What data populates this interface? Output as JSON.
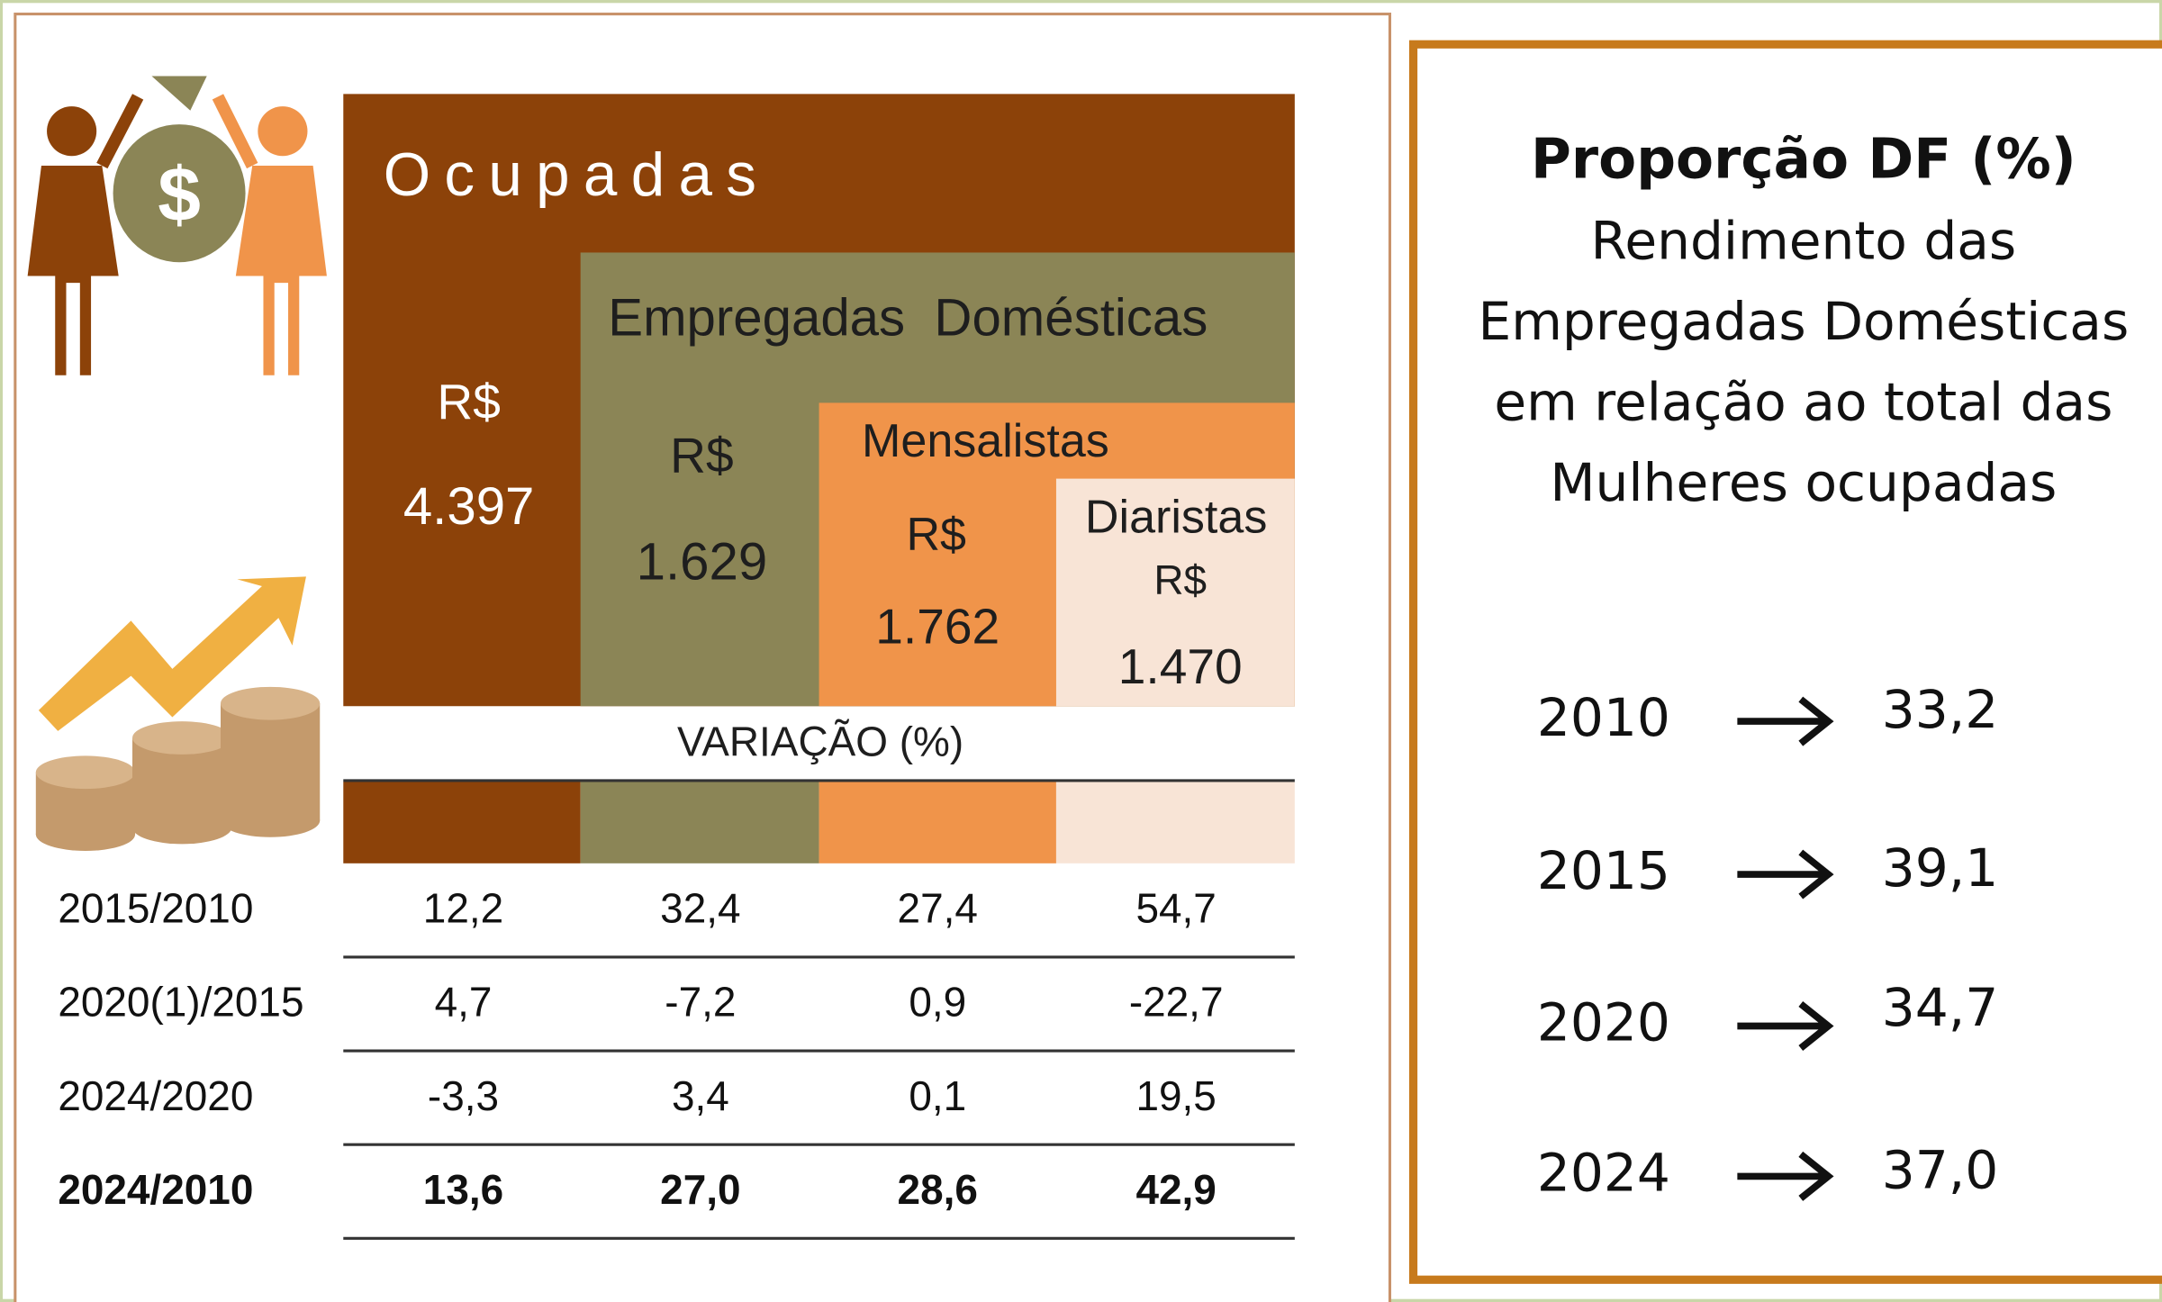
{
  "panel": {
    "ocupadas": {
      "title": "Ocupadas",
      "currency": "R$",
      "value": "4.397"
    },
    "empregadas": {
      "title": "Empregadas  Domésticas",
      "currency": "R$",
      "value": "1.629"
    },
    "mensalistas": {
      "title": "Mensalistas",
      "currency": "R$",
      "value": "1.762"
    },
    "diaristas": {
      "title": "Diaristas",
      "currency": "R$",
      "value": "1.470"
    },
    "variacao": {
      "title": "VARIAÇÃO (%)",
      "rows": [
        [
          "2015/2010",
          "12,2",
          "32,4",
          "27,4",
          "54,7"
        ],
        [
          "2020(1)/2015",
          "4,7",
          "-7,2",
          "0,9",
          "-22,7"
        ],
        [
          "2024/2020",
          "-3,3",
          "3,4",
          "0,1",
          "19,5"
        ],
        [
          "2024/2010",
          "13,6",
          "27,0",
          "28,6",
          "42,9"
        ]
      ]
    }
  },
  "proporcao": {
    "title": "Proporção DF (%)",
    "subtitle": [
      "Rendimento das",
      "Empregadas Domésticas",
      "em relação ao total das",
      "Mulheres ocupadas"
    ],
    "rows": [
      [
        "2010",
        "33,2"
      ],
      [
        "2015",
        "39,1"
      ],
      [
        "2020",
        "34,7"
      ],
      [
        "2024",
        "37,0"
      ]
    ]
  }
}
